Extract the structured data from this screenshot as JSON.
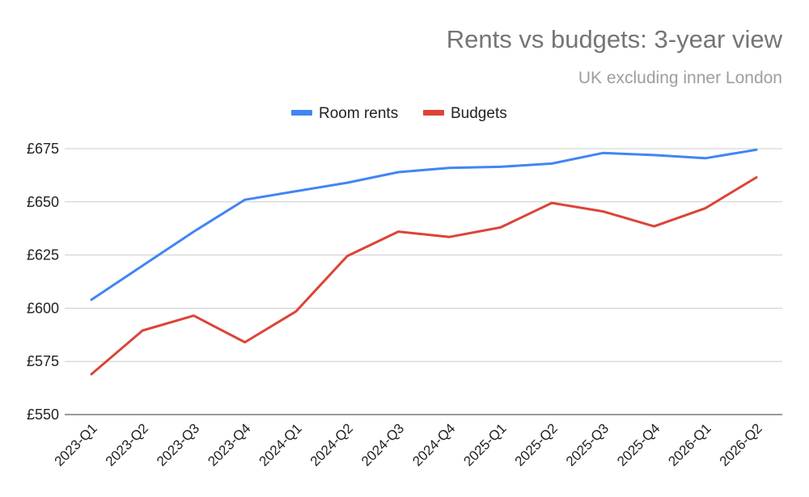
{
  "chart_data": {
    "type": "line",
    "title": "Rents vs budgets: 3-year view",
    "subtitle": "UK excluding inner London",
    "xlabel": "",
    "ylabel": "",
    "categories": [
      "2023-Q1",
      "2023-Q2",
      "2023-Q3",
      "2023-Q4",
      "2024-Q1",
      "2024-Q2",
      "2024-Q3",
      "2024-Q4",
      "2025-Q1",
      "2025-Q2",
      "2025-Q3",
      "2025-Q4",
      "2026-Q1",
      "2026-Q2"
    ],
    "ylim": [
      550,
      675
    ],
    "yticks": [
      550,
      575,
      600,
      625,
      650,
      675
    ],
    "ytick_labels": [
      "£550",
      "£575",
      "£600",
      "£625",
      "£650",
      "£675"
    ],
    "grid": true,
    "legend_position": "top",
    "series": [
      {
        "name": "Room rents",
        "color": "#4285f4",
        "values": [
          604,
          620,
          636,
          651,
          655,
          659,
          664,
          666,
          666.5,
          668,
          673,
          672,
          670.5,
          674.5
        ]
      },
      {
        "name": "Budgets",
        "color": "#db4437",
        "values": [
          569,
          589.5,
          596.5,
          584,
          598.5,
          624.5,
          636,
          633.5,
          638,
          649.5,
          645.5,
          638.5,
          647,
          661.5
        ]
      }
    ]
  }
}
